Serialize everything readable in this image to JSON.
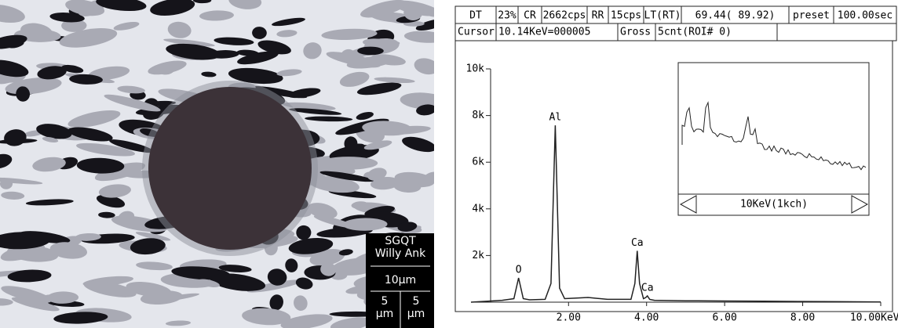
{
  "micrograph": {
    "label_line1": "SGQT",
    "label_line2": "Willy Ank",
    "scale_main": "10μm",
    "scale_left": "5\nμm",
    "scale_right": "5\nμm"
  },
  "header": {
    "row1": [
      "DT",
      "23%",
      "CR",
      "2662cps",
      "RR",
      "15cps",
      "LT(RT)",
      "69.44( 89.92)",
      "preset",
      "100.00sec"
    ],
    "row2": [
      "Cursor",
      "10.14KeV=000005",
      "Gross",
      "5cnt(ROI# 0)"
    ],
    "inset_label": "10KeV(1kch)"
  },
  "chart_data": {
    "type": "line",
    "x_label": "KeV",
    "x": [
      -0.5,
      0.3,
      0.6,
      0.72,
      0.84,
      1.0,
      1.4,
      1.55,
      1.66,
      1.77,
      1.9,
      2.5,
      3.0,
      3.6,
      3.7,
      3.76,
      3.82,
      3.92,
      3.98,
      4.02,
      4.08,
      4.2,
      5.0,
      6.0,
      7.0,
      8.0,
      9.0,
      10.0
    ],
    "series": [
      {
        "color": "#222",
        "values": [
          0,
          80,
          150,
          1040,
          150,
          100,
          120,
          800,
          7580,
          600,
          150,
          200,
          120,
          120,
          800,
          2200,
          800,
          150,
          200,
          270,
          120,
          80,
          60,
          50,
          40,
          30,
          20,
          10
        ]
      }
    ],
    "annotations": [
      {
        "text": "O",
        "x": 0.72,
        "y": 1040
      },
      {
        "text": "Al",
        "x": 1.66,
        "y": 7580
      },
      {
        "text": "Ca",
        "x": 3.76,
        "y": 2200
      },
      {
        "text": "Ca",
        "x": 4.02,
        "y": 270
      }
    ],
    "xlim": [
      -0.5,
      10
    ],
    "ylim": [
      0,
      10000
    ],
    "xticks": [
      {
        "value": 2,
        "label": "2.00"
      },
      {
        "value": 4,
        "label": "4.00"
      },
      {
        "value": 6,
        "label": "6.00"
      },
      {
        "value": 8,
        "label": "8.00"
      },
      {
        "value": 10,
        "label": "10.00"
      }
    ],
    "yticks": [
      {
        "value": 2000,
        "label": "2k"
      },
      {
        "value": 4000,
        "label": "4k"
      },
      {
        "value": 6000,
        "label": "6k"
      },
      {
        "value": 8000,
        "label": "8k"
      },
      {
        "value": 10000,
        "label": "10k"
      }
    ]
  }
}
